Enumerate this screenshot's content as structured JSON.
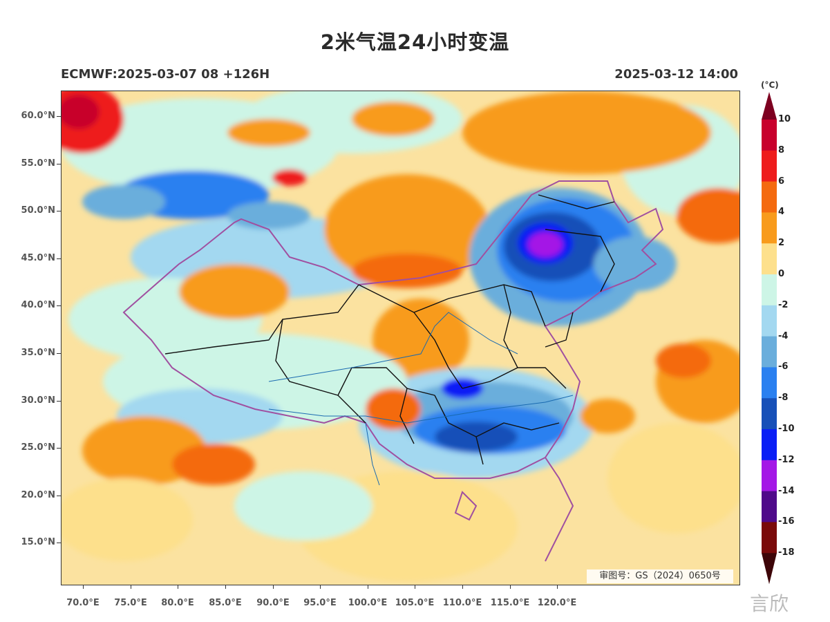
{
  "title": "2米气温24小时变温",
  "subtitle_left": "ECMWF:2025-03-07 08 +126H",
  "subtitle_right": "2025-03-12 14:00",
  "y_axis_labels": [
    "60.0°N",
    "55.0°N",
    "50.0°N",
    "45.0°N",
    "40.0°N",
    "35.0°N",
    "30.0°N",
    "25.0°N",
    "20.0°N",
    "15.0°N"
  ],
  "x_axis_labels": [
    "70.0°E",
    "75.0°E",
    "80.0°E",
    "85.0°E",
    "90.0°E",
    "95.0°E",
    "100.0°E",
    "105.0°E",
    "110.0°E",
    "115.0°E",
    "120.0°E"
  ],
  "colorbar": {
    "unit": "(°C)",
    "labels": [
      "10",
      "8",
      "6",
      "4",
      "2",
      "0",
      "-2",
      "-4",
      "-6",
      "-8",
      "-10",
      "-12",
      "-14",
      "-16",
      "-18"
    ],
    "colors": [
      "#7d0020",
      "#c8002c",
      "#ee1c1c",
      "#f46a0f",
      "#f89b1c",
      "#fde08c",
      "#cdf5e6",
      "#a3d8f0",
      "#6aaedc",
      "#2a80f0",
      "#1750b8",
      "#0a1ef5",
      "#a418e6",
      "#4f0a8a",
      "#7a0a0a",
      "#3d0508"
    ]
  },
  "approval_number": "审图号：GS（2024）0650号",
  "watermark": "言欣"
}
